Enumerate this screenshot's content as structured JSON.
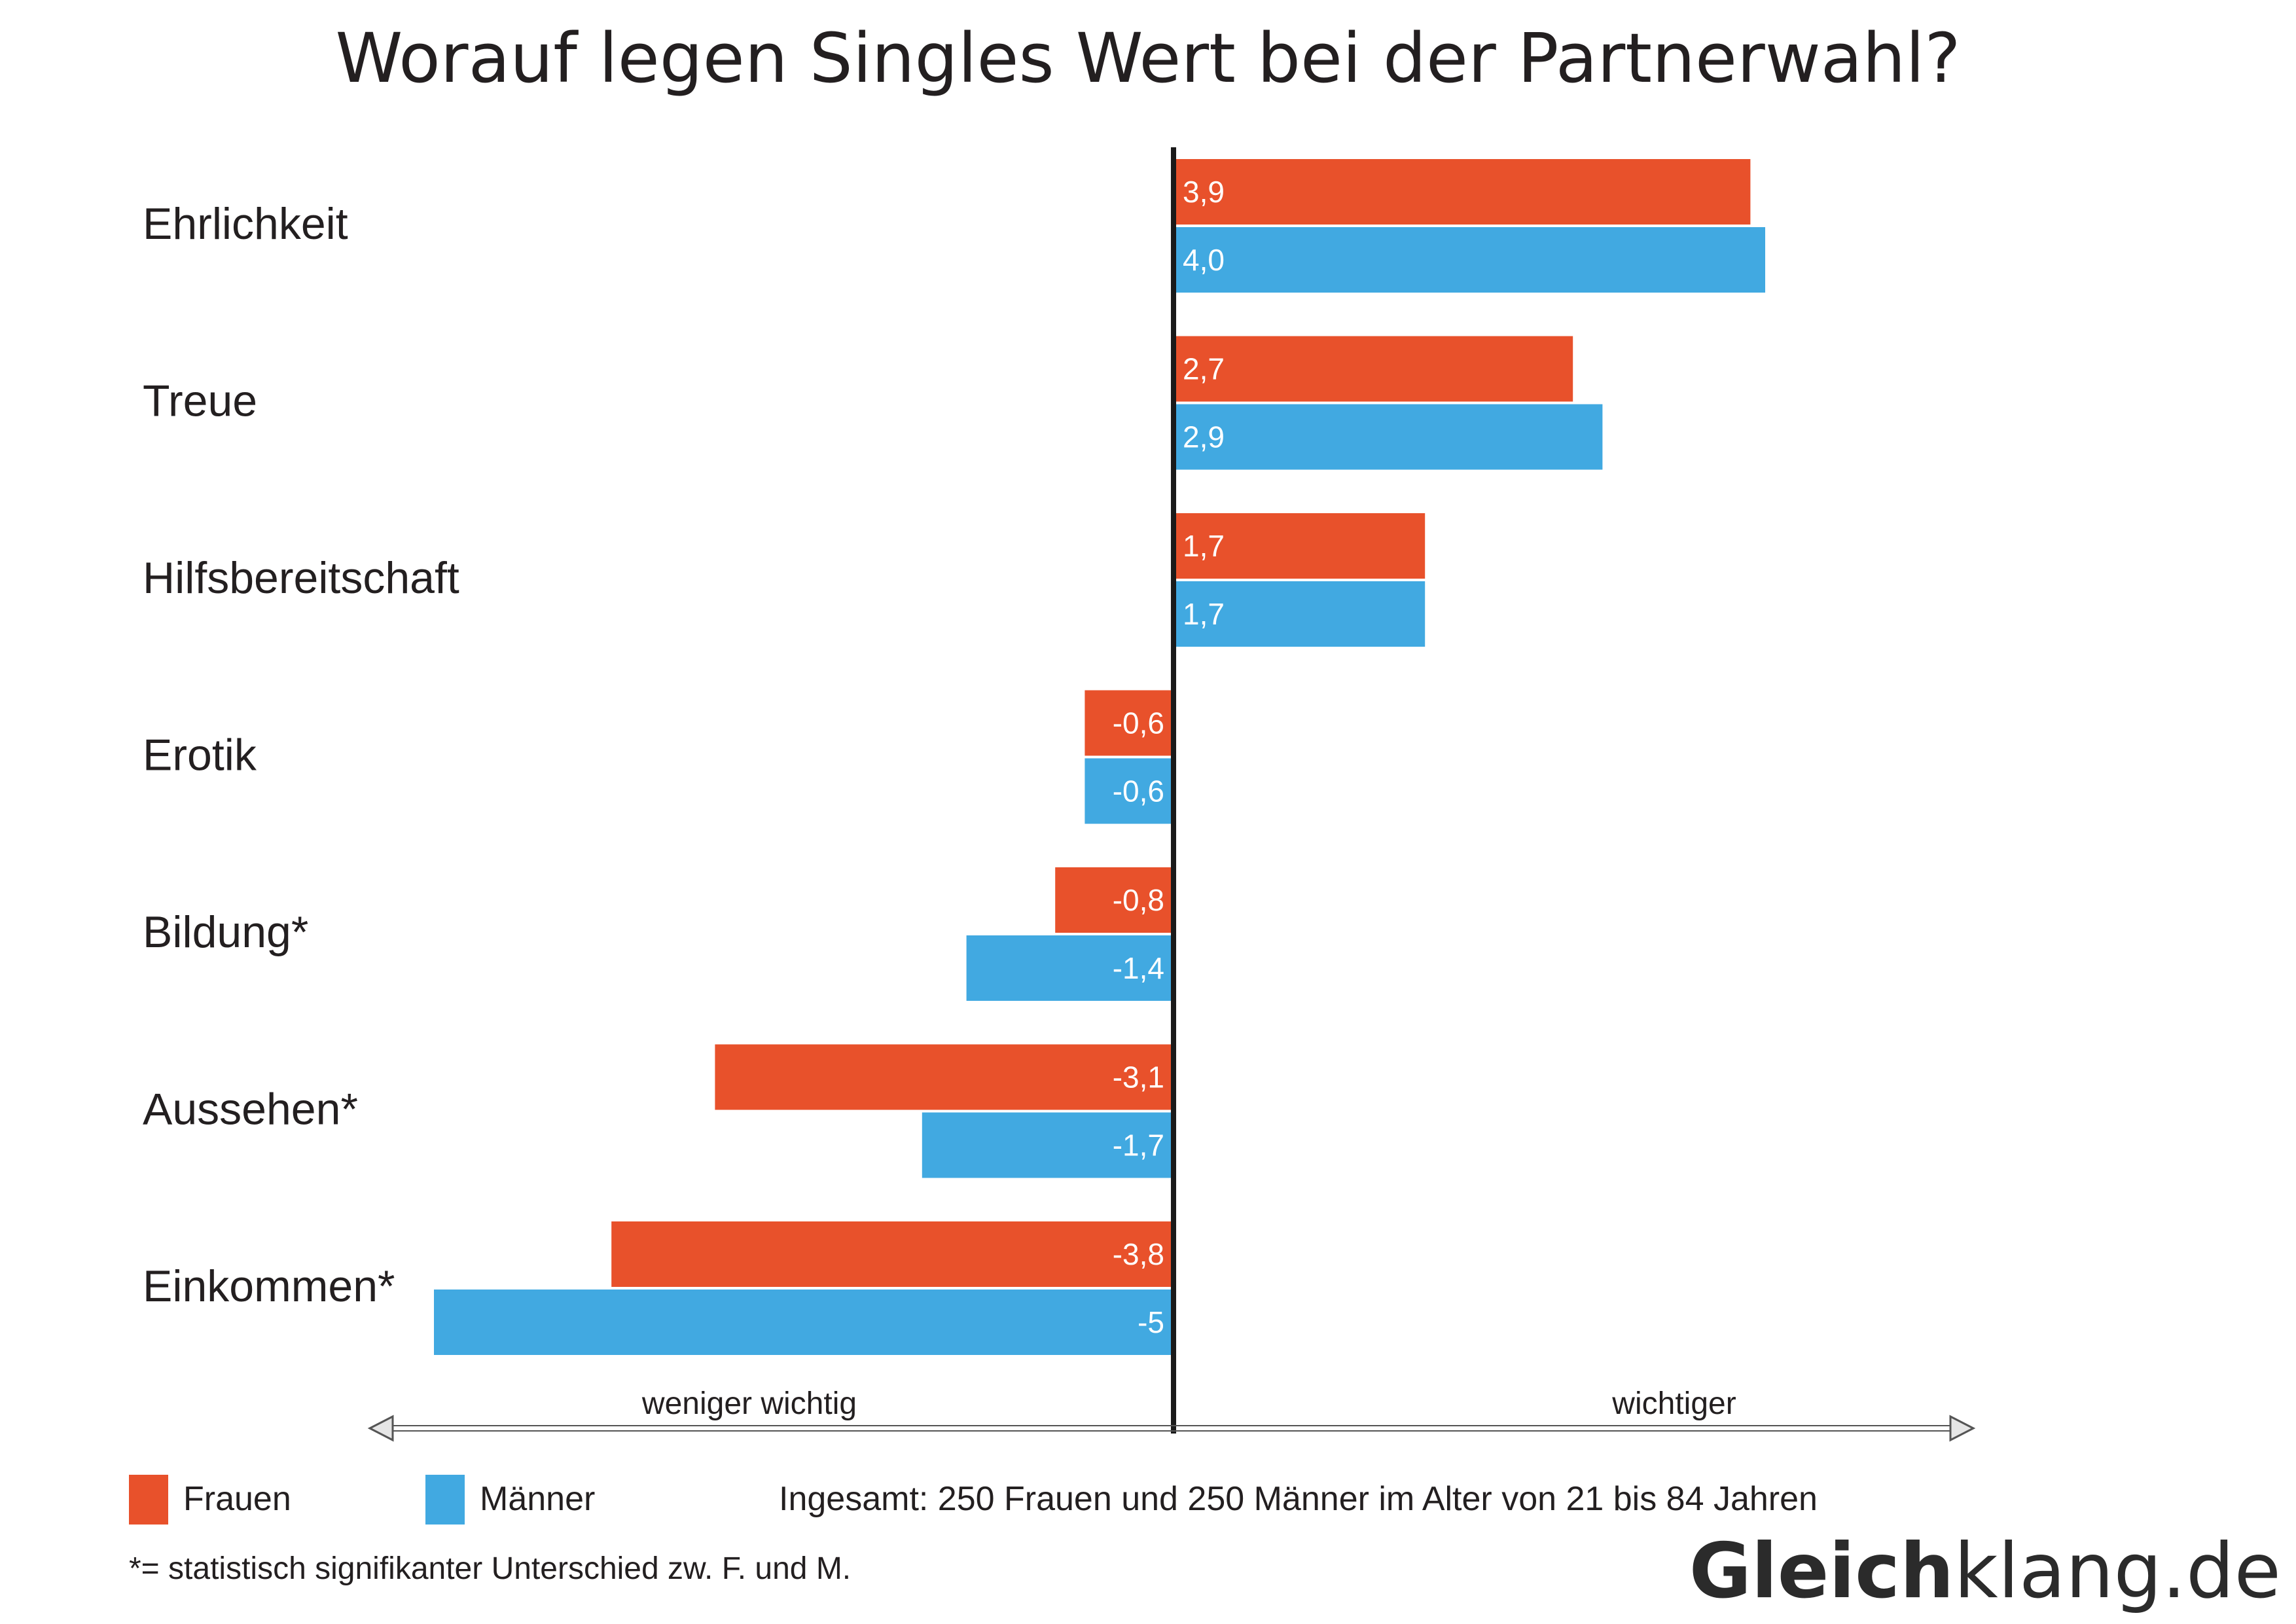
{
  "colors": {
    "frauen": "#e8512b",
    "maenner": "#41a9e1",
    "axis": "#1a1a1a",
    "text": "#231f20"
  },
  "chart_data": {
    "type": "bar",
    "orientation": "horizontal",
    "title": "Worauf legen Singles Wert bei der Partnerwahl?",
    "categories": [
      "Ehrlichkeit",
      "Treue",
      "Hilfsbereitschaft",
      "Erotik",
      "Bildung*",
      "Aussehen*",
      "Einkommen*"
    ],
    "series": [
      {
        "name": "Frauen",
        "values": [
          3.9,
          2.7,
          1.7,
          -0.6,
          -0.8,
          -3.1,
          -3.8
        ],
        "labels": [
          "3,9",
          "2,7",
          "1,7",
          "-0,6",
          "-0,8",
          "-3,1",
          "-3,8"
        ]
      },
      {
        "name": "Männer",
        "values": [
          4.0,
          2.9,
          1.7,
          -0.6,
          -1.4,
          -1.7,
          -5
        ],
        "labels": [
          "4,0",
          "2,9",
          "1,7",
          "-0,6",
          "-1,4",
          "-1,7",
          "-5"
        ]
      }
    ],
    "xlim": [
      -5,
      5
    ],
    "axis_left_label": "weniger wichtig",
    "axis_right_label": "wichtiger",
    "grid": false,
    "legend_position": "bottom-left"
  },
  "legend": {
    "frauen_label": "Frauen",
    "maenner_label": "Männer"
  },
  "note": "Ingesamt: 250 Frauen und 250 Männer im Alter von 21 bis 84 Jahren",
  "footnote": "*= statistisch signifikanter Unterschied zw. F. und M.",
  "brand": {
    "bold": "Gleich",
    "regular": "klang.de"
  }
}
